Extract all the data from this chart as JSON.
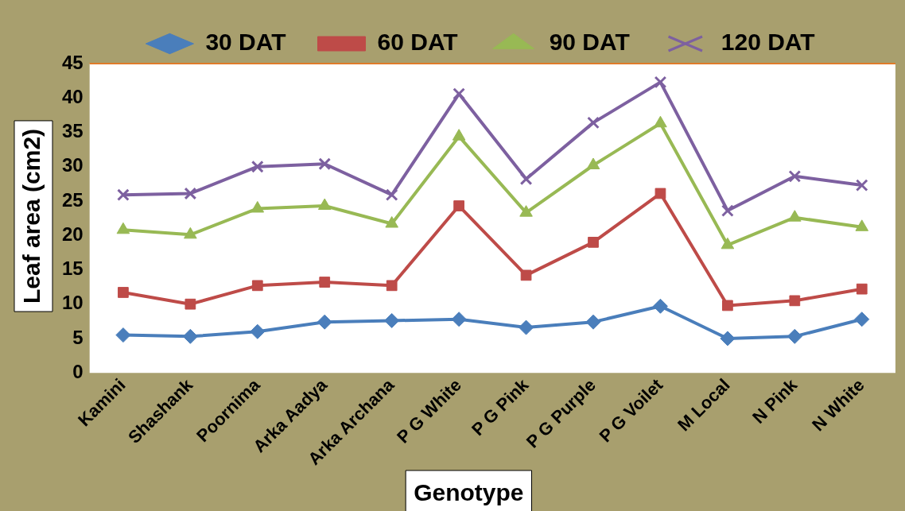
{
  "chart_data": {
    "type": "line",
    "xlabel": "Genotype",
    "ylabel": "Leaf area (cm2)",
    "categories": [
      "Kamini",
      "Shashank",
      "Poornima",
      "Arka Aadya",
      "Arka Archana",
      "P G White",
      "P G Pink",
      "P G Purple",
      "P G Voilet",
      "M Local",
      "N Pink",
      "N White"
    ],
    "series": [
      {
        "name": "30 DAT",
        "color": "#4a7ebb",
        "marker": "diamond",
        "values": [
          5.5,
          5.3,
          6.0,
          7.4,
          7.6,
          7.8,
          6.6,
          7.4,
          9.7,
          5.0,
          5.3,
          7.8
        ]
      },
      {
        "name": "60 DAT",
        "color": "#be4b48",
        "marker": "square",
        "values": [
          11.7,
          10.0,
          12.7,
          13.2,
          12.7,
          24.3,
          14.2,
          19.0,
          26.1,
          9.8,
          10.5,
          12.2
        ]
      },
      {
        "name": "90 DAT",
        "color": "#98b954",
        "marker": "triangle",
        "values": [
          20.8,
          20.1,
          23.9,
          24.3,
          21.7,
          34.4,
          23.3,
          30.2,
          36.3,
          18.6,
          22.6,
          21.2
        ]
      },
      {
        "name": "120 DAT",
        "color": "#7d60a0",
        "marker": "cross",
        "values": [
          25.9,
          26.1,
          30.0,
          30.4,
          25.9,
          40.6,
          28.2,
          36.4,
          42.3,
          23.6,
          28.6,
          27.3
        ]
      }
    ],
    "ylim": [
      0,
      45
    ],
    "yticks": [
      0,
      5,
      10,
      15,
      20,
      25,
      30,
      35,
      40,
      45
    ],
    "grid": false,
    "legend": "top",
    "line_style": "solid"
  }
}
